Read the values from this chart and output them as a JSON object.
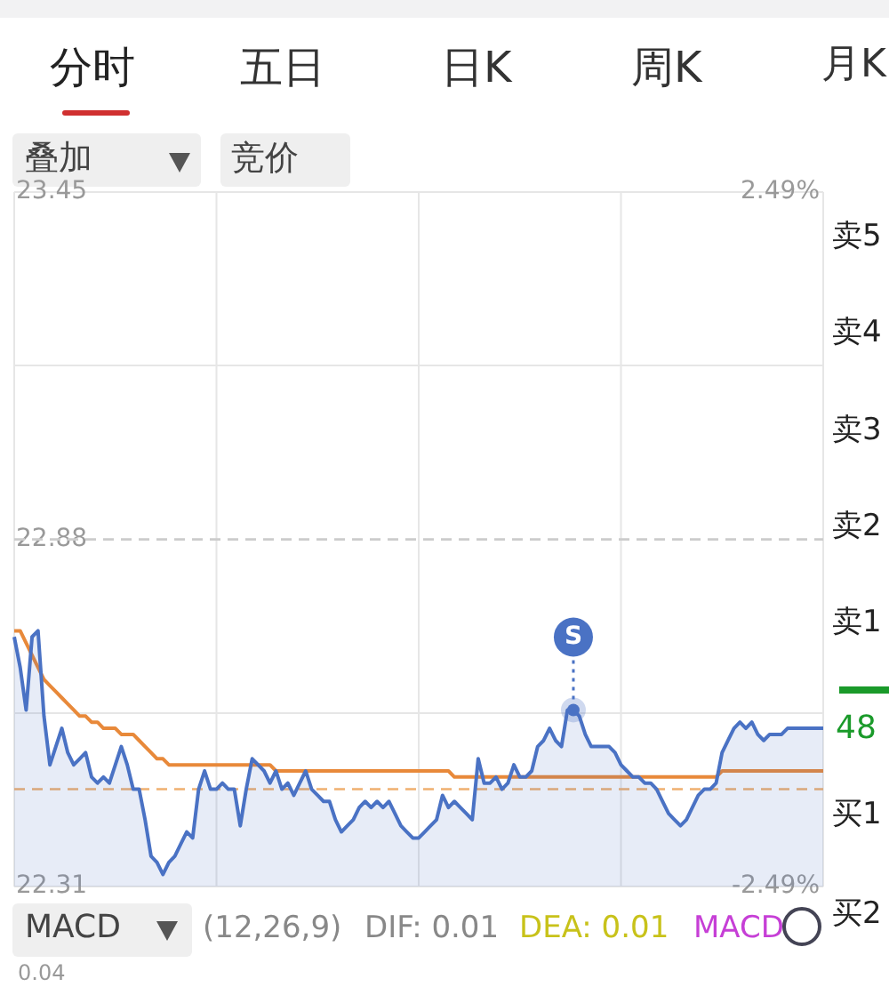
{
  "chart_data": {
    "type": "area",
    "categories": [
      null,
      null,
      null,
      null,
      null,
      null,
      null,
      null,
      null,
      null,
      null,
      null,
      null,
      null,
      null,
      null,
      null,
      null,
      null,
      null,
      null,
      null,
      null,
      null,
      null,
      null,
      null,
      null,
      null,
      null,
      null,
      null,
      null,
      null,
      null,
      null,
      null,
      null,
      null,
      null,
      null,
      null,
      null,
      null,
      null,
      null,
      null,
      null,
      null,
      null,
      null,
      null,
      null,
      null,
      null,
      null,
      null,
      null,
      null,
      null,
      null,
      null,
      null,
      null,
      null,
      null,
      null,
      null,
      null,
      null,
      null,
      null,
      null,
      null,
      null,
      null,
      null,
      null,
      null,
      null,
      null,
      null,
      null,
      null,
      null,
      null,
      null,
      null,
      null,
      null,
      null,
      null,
      null,
      null,
      null,
      null,
      null,
      null,
      null,
      null,
      null,
      null,
      null,
      null,
      null,
      null,
      null,
      null,
      null,
      null,
      null,
      null,
      null,
      null,
      null,
      null,
      null,
      null,
      null,
      null,
      null,
      null,
      null,
      null,
      null,
      null,
      null,
      null,
      null,
      null,
      null,
      null,
      null,
      null,
      null,
      null,
      null
    ],
    "series": [
      {
        "color": "#4a72c4",
        "values": [
          22.72,
          22.67,
          22.6,
          22.72,
          22.73,
          22.59,
          22.51,
          22.54,
          22.57,
          22.53,
          22.51,
          22.52,
          22.53,
          22.49,
          22.48,
          22.49,
          22.48,
          22.51,
          22.54,
          22.51,
          22.47,
          22.47,
          22.42,
          22.36,
          22.35,
          22.33,
          22.35,
          22.36,
          22.38,
          22.4,
          22.39,
          22.47,
          22.5,
          22.47,
          22.47,
          22.48,
          22.47,
          22.47,
          22.41,
          22.47,
          22.52,
          22.51,
          22.5,
          22.48,
          22.5,
          22.47,
          22.48,
          22.46,
          22.48,
          22.5,
          22.47,
          22.46,
          22.45,
          22.45,
          22.42,
          22.4,
          22.41,
          22.42,
          22.44,
          22.45,
          22.44,
          22.45,
          22.44,
          22.45,
          22.43,
          22.41,
          22.4,
          22.39,
          22.39,
          22.4,
          22.41,
          22.42,
          22.46,
          22.44,
          22.45,
          22.44,
          22.43,
          22.42,
          22.52,
          22.48,
          22.48,
          22.49,
          22.47,
          22.48,
          22.51,
          22.49,
          22.49,
          22.5,
          22.54,
          22.55,
          22.57,
          22.55,
          22.54,
          22.6,
          22.6,
          22.59,
          22.56,
          22.54,
          22.54,
          22.54,
          22.54,
          22.53,
          22.51,
          22.5,
          22.49,
          22.49,
          22.48,
          22.48,
          22.47,
          22.45,
          22.43,
          22.42,
          22.41,
          22.42,
          22.44,
          22.46,
          22.47,
          22.47,
          22.48,
          22.53,
          22.55,
          22.57,
          22.58,
          22.57,
          22.58,
          22.56,
          22.55,
          22.56,
          22.56,
          22.56,
          22.57,
          22.57,
          22.57,
          22.57,
          22.57,
          22.57,
          22.57
        ]
      },
      {
        "type": "line",
        "color": "#e8893a",
        "values": [
          22.73,
          22.73,
          22.71,
          22.69,
          22.67,
          22.65,
          22.64,
          22.63,
          22.62,
          22.61,
          22.6,
          22.59,
          22.59,
          22.58,
          22.58,
          22.57,
          22.57,
          22.57,
          22.56,
          22.56,
          22.56,
          22.55,
          22.54,
          22.53,
          22.52,
          22.52,
          22.51,
          22.51,
          22.51,
          22.51,
          22.51,
          22.51,
          22.51,
          22.51,
          22.51,
          22.51,
          22.51,
          22.51,
          22.51,
          22.51,
          22.51,
          22.51,
          22.51,
          22.51,
          22.5,
          22.5,
          22.5,
          22.5,
          22.5,
          22.5,
          22.5,
          22.5,
          22.5,
          22.5,
          22.5,
          22.5,
          22.5,
          22.5,
          22.5,
          22.5,
          22.5,
          22.5,
          22.5,
          22.5,
          22.5,
          22.5,
          22.5,
          22.5,
          22.5,
          22.5,
          22.5,
          22.5,
          22.5,
          22.5,
          22.49,
          22.49,
          22.49,
          22.49,
          22.49,
          22.49,
          22.49,
          22.49,
          22.49,
          22.49,
          22.49,
          22.49,
          22.49,
          22.49,
          22.49,
          22.49,
          22.49,
          22.49,
          22.49,
          22.49,
          22.49,
          22.49,
          22.49,
          22.49,
          22.49,
          22.49,
          22.49,
          22.49,
          22.49,
          22.49,
          22.49,
          22.49,
          22.49,
          22.49,
          22.49,
          22.49,
          22.49,
          22.49,
          22.49,
          22.49,
          22.49,
          22.49,
          22.49,
          22.49,
          22.49,
          22.5,
          22.5,
          22.5,
          22.5,
          22.5,
          22.5,
          22.5,
          22.5,
          22.5,
          22.5,
          22.5,
          22.5,
          22.5,
          22.5,
          22.5,
          22.5,
          22.5,
          22.5
        ]
      }
    ],
    "ylim": [
      22.31,
      23.45
    ],
    "yticks": [
      22.31,
      {
        "value": 22.595,
        "label": null
      },
      22.88,
      {
        "value": 23.165,
        "label": null
      },
      23.45
    ],
    "y2lim": [
      -2.49,
      2.49
    ],
    "y2ticks": [
      {
        "value": -2.49,
        "label": "-2.49%"
      },
      {
        "value": 2.49,
        "label": "2.49%"
      }
    ],
    "grid": true,
    "legend": false,
    "marker": "none",
    "ref_lines": [
      {
        "axis": "y",
        "value": 22.88,
        "color": "#cccccc",
        "line_style": "dashed"
      },
      {
        "axis": "y",
        "value": 22.47,
        "color": "#f0b070",
        "line_style": "dashed"
      }
    ],
    "annotations": [
      {
        "text": "S",
        "y": 22.6
      },
      "分时",
      "五日",
      "日K",
      "周K",
      "月K",
      "叠加",
      "竞价",
      "卖5",
      "卖4",
      "卖3",
      "卖2",
      "卖1",
      "48",
      "买1",
      "买2",
      "MACD",
      "(12,26,9)",
      "DIF: 0.01",
      "DEA: 0.01",
      "MACD",
      "0.04"
    ]
  }
}
